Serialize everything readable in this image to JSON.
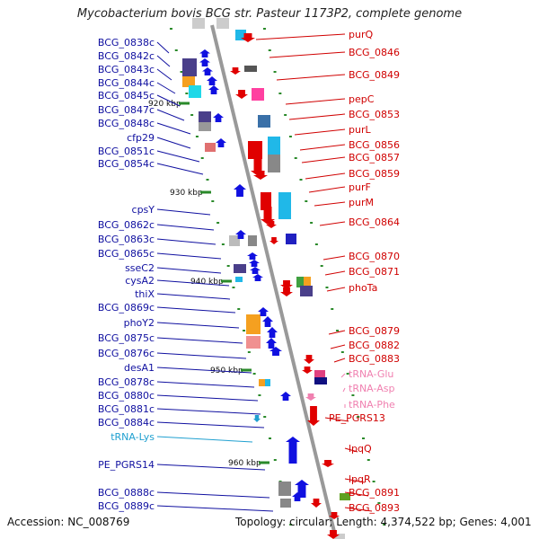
{
  "title": "Mycobacterium bovis BCG str. Pasteur 1173P2, complete genome",
  "accession": "Accession: NC_008769",
  "topology": "Topology: circular; Length: 4,374,522 bp; Genes: 4,001",
  "kbp_markers": [
    "920 kbp",
    "930 kbp",
    "940 kbp",
    "950 kbp",
    "960 kbp"
  ],
  "left_labels": [
    "BCG_0838c",
    "BCG_0842c",
    "BCG_0843c",
    "BCG_0844c",
    "BCG_0845c",
    "BCG_0847c",
    "BCG_0848c",
    "cfp29",
    "BCG_0851c",
    "BCG_0854c",
    "cpsY",
    "BCG_0862c",
    "BCG_0863c",
    "BCG_0865c",
    "sseC2",
    "cysA2",
    "thiX",
    "BCG_0869c",
    "phoY2",
    "BCG_0875c",
    "BCG_0876c",
    "desA1",
    "BCG_0878c",
    "BCG_0880c",
    "BCG_0881c",
    "BCG_0884c",
    "tRNA-Lys",
    "PE_PGRS14",
    "BCG_0888c",
    "BCG_0889c"
  ],
  "right_labels": [
    "purQ",
    "BCG_0846",
    "BCG_0849",
    "pepC",
    "BCG_0853",
    "purL",
    "BCG_0856",
    "BCG_0857",
    "BCG_0859",
    "purF",
    "purM",
    "BCG_0864",
    "BCG_0870",
    "BCG_0871",
    "phoTa",
    "BCG_0879",
    "BCG_0882",
    "BCG_0883",
    "tRNA-Glu",
    "tRNA-Asp",
    "tRNA-Phe",
    "PE_PGRS13",
    "lpqQ",
    "lpqR",
    "BCG_0891",
    "BCG_0893"
  ],
  "colors": {
    "reverse_strand": "#1010a0",
    "forward_strand": "#d00000",
    "trna": "#f080b0",
    "trna_lys": "#20a0d0",
    "backbone": "#999999",
    "tick": "#2a8a2a"
  }
}
